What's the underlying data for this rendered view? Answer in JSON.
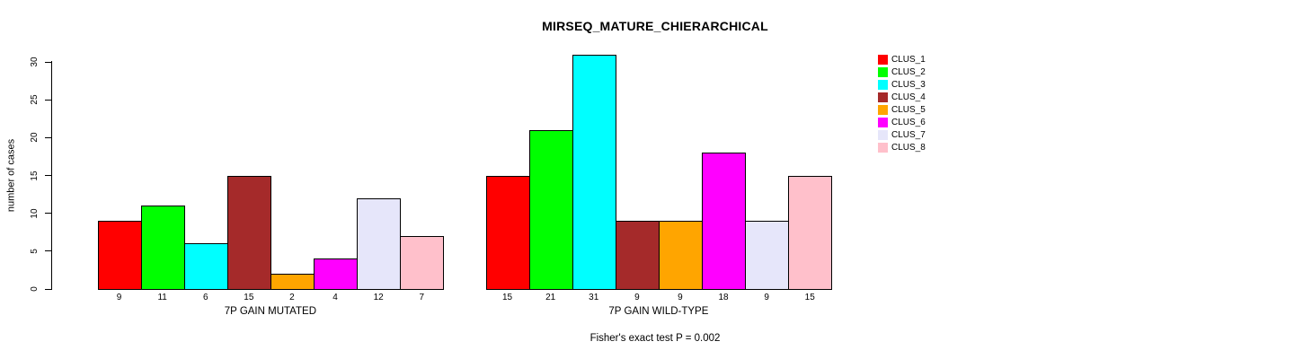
{
  "chart_data": {
    "type": "bar",
    "title": "MIRSEQ_MATURE_CHIERARCHICAL",
    "ylabel": "number of cases",
    "xlabel": "",
    "ylim": [
      0,
      30
    ],
    "yticks": [
      0,
      5,
      10,
      15,
      20,
      25,
      30
    ],
    "grid": false,
    "legend_position": "top-right-outside",
    "annotation": "Fisher's exact test P = 0.002",
    "legend": [
      "CLUS_1",
      "CLUS_2",
      "CLUS_3",
      "CLUS_4",
      "CLUS_5",
      "CLUS_6",
      "CLUS_7",
      "CLUS_8"
    ],
    "colors": [
      "#FF0000",
      "#00FF00",
      "#00FFFF",
      "#A52A2A",
      "#FFA500",
      "#FF00FF",
      "#E6E6FA",
      "#FFC0CB"
    ],
    "groups": [
      {
        "label": "7P GAIN MUTATED",
        "categories": [
          "CLUS_1",
          "CLUS_2",
          "CLUS_3",
          "CLUS_4",
          "CLUS_5",
          "CLUS_6",
          "CLUS_7",
          "CLUS_8"
        ],
        "values": [
          9,
          11,
          6,
          15,
          2,
          4,
          12,
          7
        ]
      },
      {
        "label": "7P GAIN WILD-TYPE",
        "categories": [
          "CLUS_1",
          "CLUS_2",
          "CLUS_3",
          "CLUS_4",
          "CLUS_5",
          "CLUS_6",
          "CLUS_7",
          "CLUS_8"
        ],
        "values": [
          15,
          21,
          31,
          9,
          9,
          18,
          9,
          15
        ]
      }
    ]
  }
}
